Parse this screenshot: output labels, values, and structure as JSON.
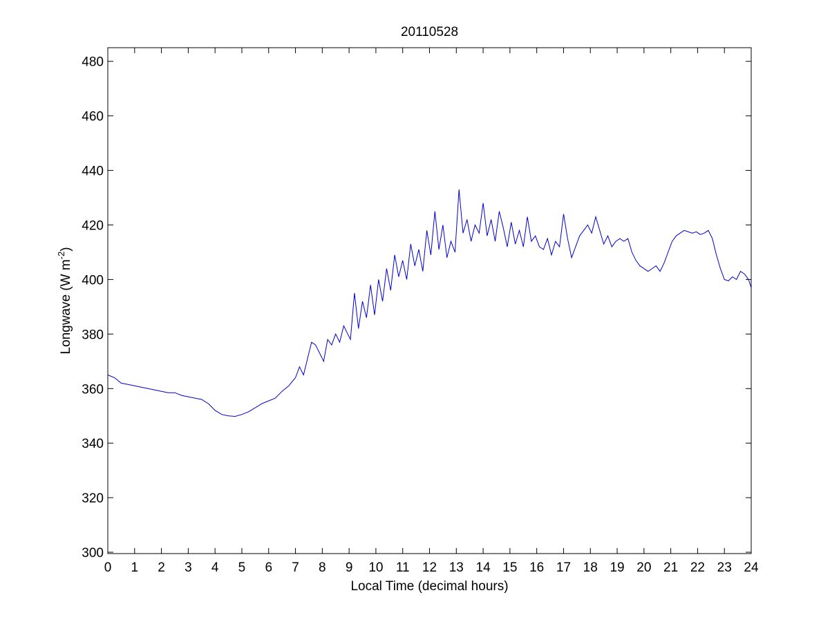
{
  "chart_data": {
    "type": "line",
    "title": "20110528",
    "xlabel": "Local Time (decimal hours)",
    "ylabel_main": "Longwave (W m",
    "ylabel_sup": "-2",
    "ylabel_close": ")",
    "xlim": [
      0,
      24
    ],
    "ylim": [
      299.5,
      485
    ],
    "xticks": [
      0,
      1,
      2,
      3,
      4,
      5,
      6,
      7,
      8,
      9,
      10,
      11,
      12,
      13,
      14,
      15,
      16,
      17,
      18,
      19,
      20,
      21,
      22,
      23,
      24
    ],
    "yticks": [
      300,
      320,
      340,
      360,
      380,
      400,
      420,
      440,
      460,
      480
    ],
    "grid": false,
    "line_color": "#0000cc",
    "series": [
      {
        "x": [
          0.0,
          0.25,
          0.5,
          0.75,
          1.0,
          1.25,
          1.5,
          1.75,
          2.0,
          2.25,
          2.5,
          2.75,
          3.0,
          3.25,
          3.5,
          3.75,
          4.0,
          4.25,
          4.5,
          4.75,
          5.0,
          5.25,
          5.5,
          5.75,
          6.0,
          6.25,
          6.5,
          6.75,
          7.0,
          7.15,
          7.3,
          7.45,
          7.6,
          7.75,
          7.9,
          8.05,
          8.2,
          8.35,
          8.5,
          8.65,
          8.8,
          8.95,
          9.05,
          9.2,
          9.35,
          9.5,
          9.65,
          9.8,
          9.95,
          10.1,
          10.25,
          10.4,
          10.55,
          10.7,
          10.85,
          11.0,
          11.15,
          11.3,
          11.45,
          11.6,
          11.75,
          11.9,
          12.05,
          12.2,
          12.35,
          12.5,
          12.65,
          12.8,
          12.95,
          13.1,
          13.25,
          13.4,
          13.55,
          13.7,
          13.85,
          14.0,
          14.15,
          14.3,
          14.45,
          14.6,
          14.75,
          14.9,
          15.05,
          15.2,
          15.35,
          15.5,
          15.65,
          15.8,
          15.95,
          16.1,
          16.25,
          16.4,
          16.55,
          16.7,
          16.85,
          17.0,
          17.15,
          17.3,
          17.45,
          17.6,
          17.75,
          17.9,
          18.05,
          18.2,
          18.35,
          18.5,
          18.65,
          18.8,
          18.95,
          19.1,
          19.25,
          19.4,
          19.55,
          19.7,
          19.85,
          20.0,
          20.15,
          20.3,
          20.45,
          20.6,
          20.75,
          20.9,
          21.05,
          21.2,
          21.35,
          21.5,
          21.65,
          21.8,
          21.95,
          22.1,
          22.25,
          22.4,
          22.55,
          22.7,
          22.85,
          23.0,
          23.15,
          23.3,
          23.45,
          23.6,
          23.75,
          23.9,
          24.0
        ],
        "y": [
          365.0,
          364.0,
          362.0,
          361.5,
          361.0,
          360.5,
          360.0,
          359.5,
          359.0,
          358.5,
          358.5,
          357.5,
          357.0,
          356.5,
          356.0,
          354.5,
          352.0,
          350.5,
          350.0,
          349.8,
          350.5,
          351.5,
          353.0,
          354.5,
          355.5,
          356.5,
          359.0,
          361.0,
          364.0,
          368.0,
          365.0,
          371.0,
          377.0,
          376.0,
          373.0,
          370.0,
          378.0,
          376.0,
          380.0,
          377.0,
          383.0,
          380.0,
          378.0,
          395.0,
          382.0,
          392.0,
          386.0,
          398.0,
          387.0,
          400.0,
          392.0,
          404.0,
          396.0,
          409.0,
          401.0,
          407.0,
          400.0,
          413.0,
          405.0,
          411.0,
          403.0,
          418.0,
          409.0,
          425.0,
          411.0,
          420.0,
          408.0,
          414.0,
          410.0,
          433.0,
          417.0,
          422.0,
          414.0,
          420.0,
          417.0,
          428.0,
          416.0,
          422.0,
          414.0,
          425.0,
          419.0,
          412.0,
          421.0,
          413.0,
          418.0,
          412.0,
          423.0,
          414.0,
          416.0,
          412.0,
          411.0,
          415.0,
          409.0,
          414.0,
          412.0,
          424.0,
          415.0,
          408.0,
          412.0,
          416.0,
          418.0,
          420.0,
          417.0,
          423.0,
          418.0,
          413.0,
          416.0,
          412.0,
          414.0,
          415.0,
          414.0,
          415.0,
          410.0,
          407.0,
          405.0,
          404.0,
          403.0,
          404.0,
          405.0,
          403.0,
          406.0,
          410.0,
          414.0,
          416.0,
          417.0,
          418.0,
          417.5,
          417.0,
          417.5,
          416.5,
          417.0,
          418.0,
          415.0,
          409.0,
          404.0,
          400.0,
          399.5,
          401.0,
          400.0,
          403.0,
          402.0,
          400.0,
          397.0
        ]
      }
    ]
  }
}
